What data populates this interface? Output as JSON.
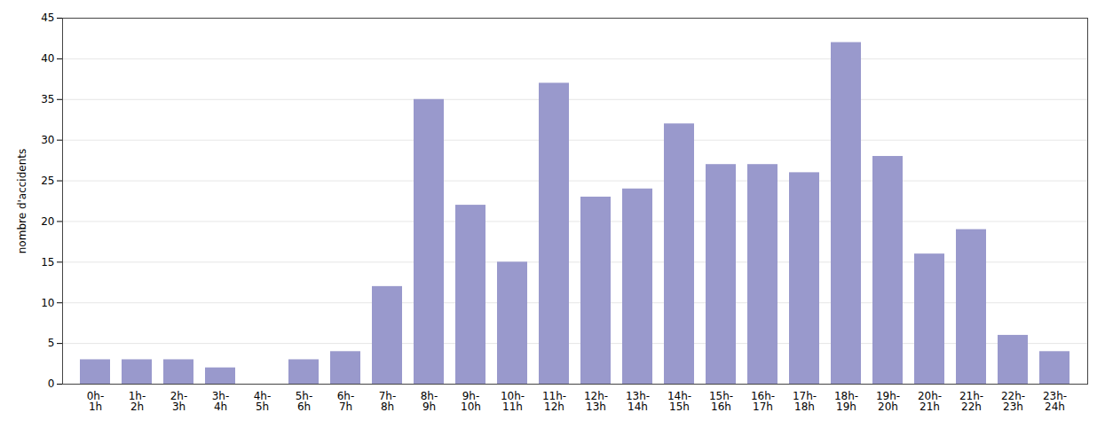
{
  "chart_data": {
    "type": "bar",
    "categories": [
      "0h-\n1h",
      "1h-\n2h",
      "2h-\n3h",
      "3h-\n4h",
      "4h-\n5h",
      "5h-\n6h",
      "6h-\n7h",
      "7h-\n8h",
      "8h-\n9h",
      "9h-\n10h",
      "10h-\n11h",
      "11h-\n12h",
      "12h-\n13h",
      "13h-\n14h",
      "14h-\n15h",
      "15h-\n16h",
      "16h-\n17h",
      "17h-\n18h",
      "18h-\n19h",
      "19h-\n20h",
      "20h-\n21h",
      "21h-\n22h",
      "22h-\n23h",
      "23h-\n24h"
    ],
    "values": [
      3,
      3,
      3,
      2,
      0,
      3,
      4,
      12,
      35,
      22,
      15,
      37,
      23,
      24,
      32,
      27,
      27,
      26,
      42,
      28,
      16,
      19,
      6,
      4
    ],
    "color": "#9999cc",
    "ylabel": "nombre d'accidents",
    "ylim": [
      0,
      45
    ],
    "yticks": [
      0,
      5,
      10,
      15,
      20,
      25,
      30,
      35,
      40,
      45
    ],
    "grid": true
  }
}
